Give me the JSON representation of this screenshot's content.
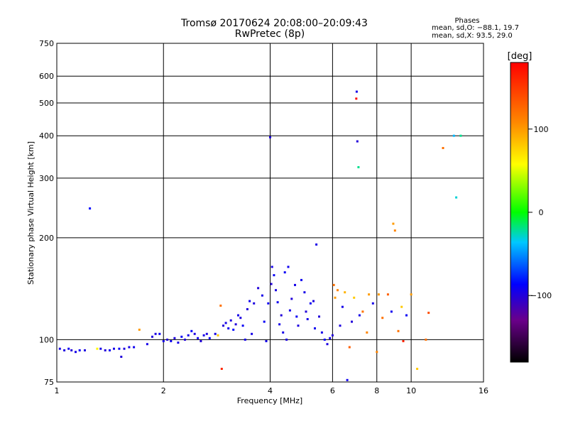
{
  "chart_data": {
    "type": "scatter",
    "title": "Tromsø 20170624 20:08:00–20:09:43",
    "subtitle": "RwPretec (8p)",
    "xlabel": "Frequency [MHz]",
    "ylabel": "Stationary phase Virtual Height [km]",
    "xscale": "log",
    "yscale": "log",
    "xlim": [
      1,
      16
    ],
    "ylim": [
      75,
      750
    ],
    "xticks": [
      1,
      2,
      4,
      6,
      8,
      10,
      16
    ],
    "xtick_labels": [
      "1",
      "2",
      "4",
      "6",
      "8",
      "10",
      "16"
    ],
    "yticks": [
      75,
      100,
      200,
      300,
      400,
      500,
      600,
      750
    ],
    "ytick_labels": [
      "75",
      "100",
      "200",
      "300",
      "400",
      "500",
      "600",
      "750"
    ],
    "grid": true,
    "colorbar": {
      "label": "[deg]",
      "range": [
        -180,
        180
      ],
      "ticks": [
        100,
        0,
        -100
      ],
      "tick_labels": [
        "100",
        "0",
        "−100"
      ]
    },
    "legend": {
      "title": "Phases",
      "lines": [
        "mean, sd,O: −88.1, 19.7",
        "mean, sd,X:  93.5, 29.0"
      ]
    },
    "series": [
      {
        "values_format": "[frequency_MHz, virtual_height_km, phase_deg]",
        "points": [
          [
            1.02,
            94,
            -95
          ],
          [
            1.05,
            93,
            -98
          ],
          [
            1.08,
            94,
            -92
          ],
          [
            1.1,
            93,
            -100
          ],
          [
            1.13,
            92,
            -95
          ],
          [
            1.16,
            93,
            -90
          ],
          [
            1.2,
            93,
            -98
          ],
          [
            1.24,
            244,
            -85
          ],
          [
            1.3,
            94,
            60
          ],
          [
            1.33,
            94,
            -95
          ],
          [
            1.37,
            93,
            -100
          ],
          [
            1.41,
            93,
            -92
          ],
          [
            1.45,
            94,
            -95
          ],
          [
            1.5,
            94,
            -90
          ],
          [
            1.52,
            89,
            -100
          ],
          [
            1.55,
            94,
            -98
          ],
          [
            1.6,
            95,
            -95
          ],
          [
            1.65,
            95,
            -92
          ],
          [
            1.71,
            107,
            100
          ],
          [
            1.8,
            97,
            -95
          ],
          [
            1.86,
            102,
            -100
          ],
          [
            1.9,
            104,
            -98
          ],
          [
            1.95,
            104,
            -90
          ],
          [
            2.0,
            99,
            -95
          ],
          [
            2.05,
            100,
            -100
          ],
          [
            2.1,
            99,
            -92
          ],
          [
            2.15,
            101,
            -98
          ],
          [
            2.2,
            98,
            -95
          ],
          [
            2.25,
            102,
            -90
          ],
          [
            2.3,
            100,
            -100
          ],
          [
            2.35,
            103,
            -95
          ],
          [
            2.4,
            106,
            -88
          ],
          [
            2.45,
            104,
            -98
          ],
          [
            2.5,
            101,
            -92
          ],
          [
            2.55,
            99,
            -100
          ],
          [
            2.6,
            103,
            -95
          ],
          [
            2.65,
            104,
            -98
          ],
          [
            2.7,
            101,
            -90
          ],
          [
            2.8,
            104,
            -95
          ],
          [
            2.85,
            103,
            80
          ],
          [
            2.9,
            126,
            120
          ],
          [
            2.92,
            82,
            160
          ],
          [
            2.95,
            110,
            -100
          ],
          [
            3.0,
            112,
            -95
          ],
          [
            3.05,
            108,
            -92
          ],
          [
            3.1,
            114,
            -98
          ],
          [
            3.15,
            107,
            -85
          ],
          [
            3.2,
            111,
            -100
          ],
          [
            3.25,
            118,
            -95
          ],
          [
            3.3,
            116,
            -98
          ],
          [
            3.35,
            110,
            -90
          ],
          [
            3.4,
            100,
            -95
          ],
          [
            3.45,
            123,
            -100
          ],
          [
            3.5,
            130,
            -92
          ],
          [
            3.55,
            104,
            -95
          ],
          [
            3.6,
            128,
            -98
          ],
          [
            3.7,
            142,
            -100
          ],
          [
            3.8,
            135,
            -95
          ],
          [
            3.85,
            113,
            -90
          ],
          [
            3.9,
            99,
            -95
          ],
          [
            3.95,
            128,
            -92
          ],
          [
            4.0,
            396,
            -98
          ],
          [
            4.03,
            146,
            -100
          ],
          [
            4.05,
            164,
            -95
          ],
          [
            4.1,
            155,
            -90
          ],
          [
            4.15,
            140,
            -98
          ],
          [
            4.2,
            129,
            -92
          ],
          [
            4.25,
            111,
            -95
          ],
          [
            4.3,
            118,
            -100
          ],
          [
            4.35,
            105,
            -95
          ],
          [
            4.4,
            158,
            -90
          ],
          [
            4.45,
            100,
            -98
          ],
          [
            4.5,
            164,
            -92
          ],
          [
            4.55,
            122,
            -95
          ],
          [
            4.6,
            132,
            -100
          ],
          [
            4.7,
            145,
            -95
          ],
          [
            4.75,
            117,
            -90
          ],
          [
            4.8,
            110,
            -98
          ],
          [
            4.9,
            150,
            -92
          ],
          [
            5.0,
            138,
            -95
          ],
          [
            5.05,
            121,
            -100
          ],
          [
            5.1,
            115,
            -95
          ],
          [
            5.2,
            128,
            -90
          ],
          [
            5.3,
            130,
            -98
          ],
          [
            5.35,
            108,
            -92
          ],
          [
            5.4,
            191,
            -95
          ],
          [
            5.5,
            117,
            -100
          ],
          [
            5.6,
            105,
            -95
          ],
          [
            5.7,
            100,
            -90
          ],
          [
            5.8,
            97,
            -98
          ],
          [
            5.9,
            101,
            -95
          ],
          [
            6.0,
            103,
            -100
          ],
          [
            6.05,
            145,
            120
          ],
          [
            6.1,
            133,
            100
          ],
          [
            6.2,
            140,
            110
          ],
          [
            6.3,
            110,
            -98
          ],
          [
            6.4,
            125,
            -95
          ],
          [
            6.5,
            138,
            90
          ],
          [
            6.6,
            76,
            -92
          ],
          [
            6.7,
            95,
            130
          ],
          [
            6.8,
            113,
            -100
          ],
          [
            6.9,
            133,
            80
          ],
          [
            7.0,
            515,
            175
          ],
          [
            7.02,
            540,
            -95
          ],
          [
            7.05,
            385,
            -100
          ],
          [
            7.1,
            323,
            -20
          ],
          [
            7.15,
            118,
            -95
          ],
          [
            7.3,
            121,
            120
          ],
          [
            7.5,
            105,
            110
          ],
          [
            7.6,
            136,
            100
          ],
          [
            7.8,
            128,
            -95
          ],
          [
            8.0,
            92,
            110
          ],
          [
            8.1,
            136,
            100
          ],
          [
            8.3,
            116,
            120
          ],
          [
            8.6,
            136,
            130
          ],
          [
            8.8,
            121,
            -92
          ],
          [
            8.9,
            220,
            100
          ],
          [
            9.0,
            210,
            110
          ],
          [
            9.2,
            106,
            120
          ],
          [
            9.4,
            125,
            80
          ],
          [
            9.5,
            99,
            160
          ],
          [
            9.7,
            118,
            -90
          ],
          [
            10.0,
            136,
            100
          ],
          [
            10.4,
            82,
            80
          ],
          [
            11.0,
            100,
            120
          ],
          [
            11.2,
            120,
            140
          ],
          [
            12.3,
            368,
            120
          ],
          [
            13.2,
            400,
            -40
          ],
          [
            13.4,
            263,
            -30
          ],
          [
            13.8,
            400,
            -20
          ]
        ]
      }
    ]
  }
}
